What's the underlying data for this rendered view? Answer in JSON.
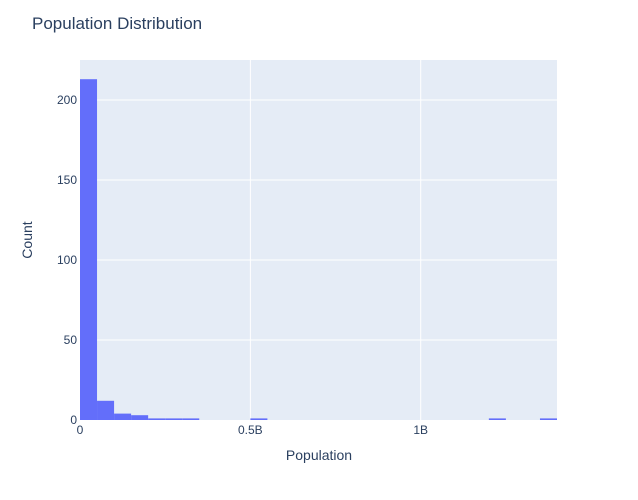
{
  "chart_data": {
    "type": "bar",
    "subtype": "histogram",
    "title": "Population Distribution",
    "xlabel": "Population",
    "ylabel": "Count",
    "xlim": [
      0,
      1400000000
    ],
    "ylim": [
      0,
      225
    ],
    "bin_width": 50000000,
    "bins": [
      {
        "x0": 0,
        "x1": 50000000,
        "count": 213
      },
      {
        "x0": 50000000,
        "x1": 100000000,
        "count": 12
      },
      {
        "x0": 100000000,
        "x1": 150000000,
        "count": 4
      },
      {
        "x0": 150000000,
        "x1": 200000000,
        "count": 3
      },
      {
        "x0": 200000000,
        "x1": 250000000,
        "count": 1
      },
      {
        "x0": 250000000,
        "x1": 300000000,
        "count": 1
      },
      {
        "x0": 300000000,
        "x1": 350000000,
        "count": 1
      },
      {
        "x0": 500000000,
        "x1": 550000000,
        "count": 1
      },
      {
        "x0": 1200000000,
        "x1": 1250000000,
        "count": 1
      },
      {
        "x0": 1350000000,
        "x1": 1400000000,
        "count": 1
      }
    ],
    "x_ticks": [
      {
        "value": 0,
        "label": "0"
      },
      {
        "value": 500000000,
        "label": "0.5B"
      },
      {
        "value": 1000000000,
        "label": "1B"
      }
    ],
    "y_ticks": [
      {
        "value": 0,
        "label": "0"
      },
      {
        "value": 50,
        "label": "50"
      },
      {
        "value": 100,
        "label": "100"
      },
      {
        "value": 150,
        "label": "150"
      },
      {
        "value": 200,
        "label": "200"
      }
    ],
    "grid": true,
    "colors": {
      "bar": "#636efa",
      "plot_bg": "#e5ecf6",
      "grid": "#ffffff",
      "text": "#2a3f5f"
    }
  }
}
